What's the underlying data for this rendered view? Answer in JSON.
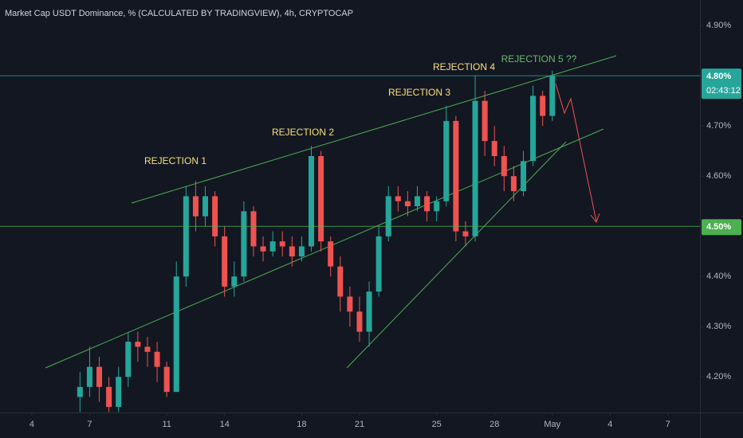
{
  "chart_data": {
    "type": "candlestick",
    "title": "Market Cap USDT Dominance, % (CALCULATED BY TRADINGVIEW), 4h, CRYPTOCAP",
    "up_color": "#26a69a",
    "down_color": "#ef5350",
    "grid": false,
    "x": [
      2.5,
      3,
      3.5,
      4,
      4.5,
      5,
      5.5,
      6,
      6.5,
      7,
      7.5,
      8,
      8.5,
      9,
      9.5,
      10,
      10.5,
      11,
      11.5,
      12,
      12.5,
      13,
      13.5,
      14,
      14.5,
      15,
      15.5,
      16,
      16.5,
      17,
      17.5,
      18,
      18.5,
      19,
      19.5,
      20,
      20.5,
      21,
      21.5,
      22,
      22.5,
      23,
      23.5,
      24,
      24.5,
      25,
      25.5,
      26,
      26.5,
      27
    ],
    "open": [
      4.16,
      4.18,
      4.22,
      4.18,
      4.14,
      4.2,
      4.27,
      4.26,
      4.25,
      4.22,
      4.17,
      4.4,
      4.56,
      4.52,
      4.56,
      4.48,
      4.38,
      4.4,
      4.53,
      4.46,
      4.45,
      4.47,
      4.46,
      4.44,
      4.46,
      4.64,
      4.47,
      4.42,
      4.36,
      4.33,
      4.29,
      4.37,
      4.48,
      4.56,
      4.55,
      4.54,
      4.56,
      4.53,
      4.55,
      4.71,
      4.49,
      4.48,
      4.75,
      4.67,
      4.64,
      4.6,
      4.57,
      4.63,
      4.76,
      4.72
    ],
    "high": [
      4.21,
      4.26,
      4.24,
      4.2,
      4.22,
      4.29,
      4.29,
      4.28,
      4.27,
      4.23,
      4.43,
      4.58,
      4.59,
      4.58,
      4.57,
      4.5,
      4.43,
      4.55,
      4.54,
      4.48,
      4.49,
      4.49,
      4.48,
      4.48,
      4.66,
      4.65,
      4.48,
      4.44,
      4.38,
      4.36,
      4.39,
      4.5,
      4.58,
      4.58,
      4.57,
      4.58,
      4.57,
      4.56,
      4.74,
      4.72,
      4.51,
      4.8,
      4.77,
      4.7,
      4.66,
      4.62,
      4.65,
      4.78,
      4.77,
      4.81
    ],
    "low": [
      4.13,
      4.16,
      4.15,
      4.13,
      4.13,
      4.18,
      4.23,
      4.22,
      4.19,
      4.16,
      4.17,
      4.38,
      4.49,
      4.5,
      4.46,
      4.36,
      4.36,
      4.39,
      4.44,
      4.43,
      4.44,
      4.44,
      4.42,
      4.43,
      4.45,
      4.45,
      4.4,
      4.33,
      4.3,
      4.27,
      4.26,
      4.36,
      4.47,
      4.53,
      4.52,
      4.53,
      4.51,
      4.51,
      4.54,
      4.47,
      4.46,
      4.47,
      4.64,
      4.62,
      4.57,
      4.55,
      4.56,
      4.62,
      4.7,
      4.71
    ],
    "close": [
      4.18,
      4.22,
      4.18,
      4.14,
      4.2,
      4.27,
      4.26,
      4.25,
      4.22,
      4.17,
      4.4,
      4.56,
      4.52,
      4.56,
      4.48,
      4.38,
      4.4,
      4.53,
      4.46,
      4.45,
      4.47,
      4.46,
      4.44,
      4.46,
      4.64,
      4.47,
      4.42,
      4.36,
      4.33,
      4.29,
      4.37,
      4.48,
      4.56,
      4.55,
      4.54,
      4.56,
      4.53,
      4.55,
      4.71,
      4.49,
      4.48,
      4.75,
      4.67,
      4.64,
      4.6,
      4.57,
      4.63,
      4.76,
      4.72,
      4.8
    ],
    "xlim": [
      -1.65,
      34.66
    ],
    "ylim": [
      4.129,
      4.951
    ],
    "xticks": [
      {
        "value": 0,
        "label": "4"
      },
      {
        "value": 3,
        "label": "7"
      },
      {
        "value": 7,
        "label": "11"
      },
      {
        "value": 10,
        "label": "14"
      },
      {
        "value": 14,
        "label": "18"
      },
      {
        "value": 17,
        "label": "21"
      },
      {
        "value": 21,
        "label": "25"
      },
      {
        "value": 24,
        "label": "28"
      },
      {
        "value": 27,
        "label": "May"
      },
      {
        "value": 30,
        "label": "4"
      },
      {
        "value": 33,
        "label": "7"
      }
    ],
    "yticks": [
      {
        "value": 4.9,
        "label": "4.90%"
      },
      {
        "value": 4.7,
        "label": "4.70%"
      },
      {
        "value": 4.6,
        "label": "4.60%"
      },
      {
        "value": 4.4,
        "label": "4.40%"
      },
      {
        "value": 4.3,
        "label": "4.30%"
      },
      {
        "value": 4.2,
        "label": "4.20%"
      }
    ],
    "price_lines": [
      {
        "value": 4.8,
        "label": "4.80%",
        "sublabel": "02:43:12",
        "color": "#26a69a"
      },
      {
        "value": 4.5,
        "label": "4.50%",
        "color": "#4caf50"
      }
    ],
    "annotations": [
      {
        "text": "REJECTION 1",
        "color": "#f7e07b"
      },
      {
        "text": "REJECTION 2",
        "color": "#f7e07b"
      },
      {
        "text": "REJECTION 3",
        "color": "#f7e07b"
      },
      {
        "text": "REJECTION 4",
        "color": "#f7e07b"
      },
      {
        "text": "REJECTION 5 ??",
        "color": "#66bb6a"
      }
    ]
  }
}
